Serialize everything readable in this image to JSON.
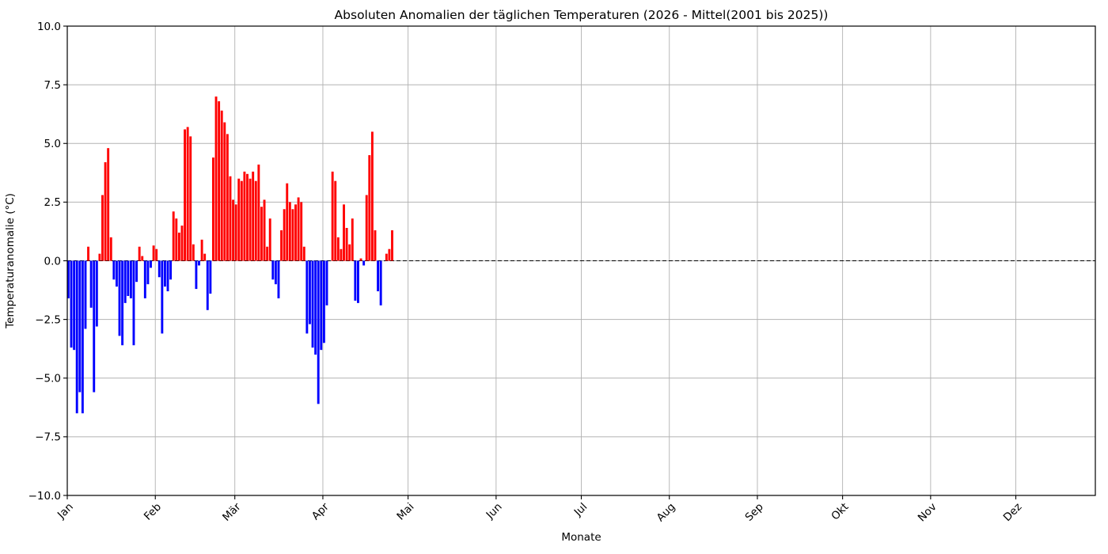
{
  "chart_data": {
    "type": "bar",
    "title": "Absoluten Anomalien der täglichen Temperaturen (2026 - Mittel(2001 bis 2025))",
    "xlabel": "Monate",
    "ylabel": "Temperaturanomalie (°C)",
    "ylim": [
      -10.0,
      10.0
    ],
    "ytick_step": 2.5,
    "yticks": [
      "10.0",
      "7.5",
      "5.0",
      "2.5",
      "0.0",
      "−2.5",
      "−5.0",
      "−7.5",
      "−10.0"
    ],
    "x_tick_labels": [
      "Jan",
      "Feb",
      "Mär",
      "Apr",
      "Mai",
      "Jun",
      "Jul",
      "Aug",
      "Sep",
      "Okt",
      "Nov",
      "Dez"
    ],
    "month_days": {
      "Jan": 31,
      "Feb": 28,
      "Mär": 31,
      "Apr": 30,
      "Mai": 31,
      "Jun": 30,
      "Jul": 31,
      "Aug": 31,
      "Sep": 30,
      "Okt": 31,
      "Nov": 30,
      "Dez": 31
    },
    "grid": true,
    "legend": "none",
    "zero_line": {
      "style": "dashed",
      "color": "#000000",
      "value": 0.0
    },
    "bar_colors": {
      "positive": "#ff0000",
      "negative": "#0000ff"
    },
    "daily_anomalies": {
      "Jan": [
        -1.6,
        -3.7,
        -3.8,
        -6.5,
        -5.6,
        -6.5,
        -2.9,
        0.6,
        -2.0,
        -5.6,
        -2.8,
        0.3,
        2.8,
        4.2,
        4.8,
        1.0,
        -0.8,
        -1.1,
        -3.2,
        -3.6,
        -1.8,
        -1.5,
        -1.6,
        -3.6,
        -0.9,
        0.6,
        0.2,
        -1.6,
        -1.0,
        -0.3,
        0.65
      ],
      "Feb": [
        0.5,
        -0.7,
        -3.1,
        -1.1,
        -1.3,
        -0.8,
        2.1,
        1.8,
        1.2,
        1.5,
        5.6,
        5.7,
        5.3,
        0.7,
        -1.2,
        -0.2,
        0.9,
        0.3,
        -2.1,
        -1.4,
        4.4,
        7.0,
        6.8,
        6.4,
        5.9,
        5.4,
        3.6,
        2.6
      ],
      "Mär": [
        2.4,
        3.5,
        3.4,
        3.8,
        3.7,
        3.5,
        3.8,
        3.4,
        4.1,
        2.3,
        2.6,
        0.6,
        1.8,
        -0.8,
        -1.0,
        -1.6,
        1.3,
        2.2,
        3.3,
        2.5,
        2.2,
        2.4,
        2.7,
        2.5,
        0.6,
        -3.1,
        -2.7,
        -3.7,
        -4.0,
        -6.1,
        -3.8
      ],
      "Apr": [
        -3.5,
        -1.9,
        0.0,
        3.8,
        3.4,
        1.0,
        0.5,
        2.4,
        1.4,
        0.7,
        1.8,
        -1.7,
        -1.8,
        0.1,
        -0.2,
        2.8,
        4.5,
        5.5,
        1.3,
        -1.3,
        -1.9,
        0.0,
        0.3,
        0.5,
        1.3
      ],
      "Mai": [],
      "Jun": [],
      "Jul": [],
      "Aug": [],
      "Sep": [],
      "Okt": [],
      "Nov": [],
      "Dez": []
    }
  }
}
